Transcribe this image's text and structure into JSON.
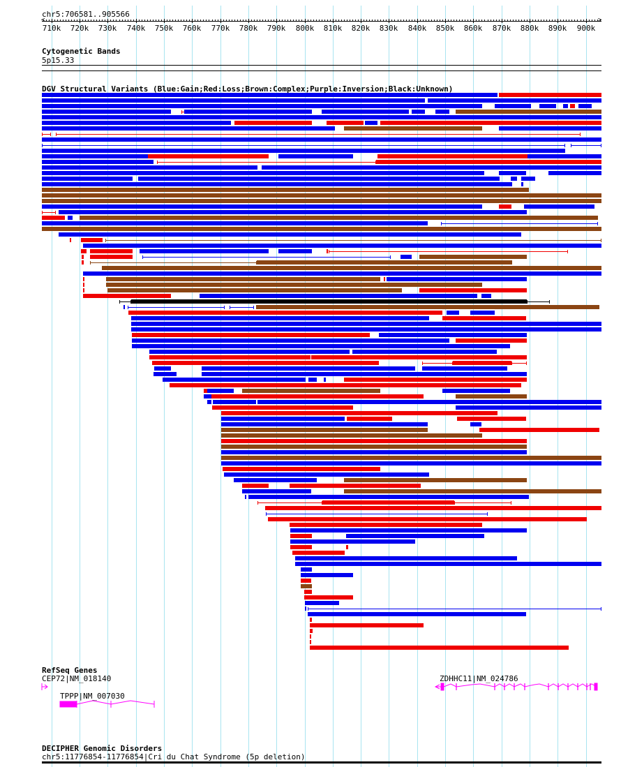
{
  "header": {
    "region": "chr5:706581..905566"
  },
  "ruler": {
    "start_kb": 706.581,
    "end_kb": 905.566,
    "labels": [
      "710k",
      "720k",
      "730k",
      "740k",
      "750k",
      "760k",
      "770k",
      "780k",
      "790k",
      "800k",
      "810k",
      "820k",
      "830k",
      "840k",
      "850k",
      "860k",
      "870k",
      "880k",
      "890k",
      "900k"
    ]
  },
  "cyto": {
    "title": "Cytogenetic Bands",
    "band": "5p15.33"
  },
  "dgv": {
    "title": "DGV Structural Variants (Blue:Gain;Red:Loss;Brown:Complex;Purple:Inversion;Black:Unknown)",
    "colors": {
      "b": "#0000f0",
      "r": "#f00000",
      "n": "#8b4513",
      "k": "#000000"
    },
    "rows": [
      [
        [
          706.6,
          868.5,
          "b"
        ],
        [
          869,
          906.1,
          "r"
        ]
      ],
      [
        [
          706.6,
          842.7,
          "b"
        ],
        [
          843.7,
          906.1,
          "b"
        ]
      ],
      [
        [
          706.6,
          863.1,
          "b"
        ],
        [
          867.5,
          880.5,
          "b"
        ],
        [
          883.5,
          889.4,
          "b"
        ],
        [
          891.9,
          893.7,
          "b"
        ],
        [
          894.4,
          896.2,
          "r"
        ],
        [
          897.4,
          902.1,
          "b"
        ]
      ],
      [
        [
          706.6,
          752.4,
          "b"
        ],
        [
          756.1,
          762.8,
          "r",
          1
        ],
        [
          757.1,
          802.6,
          "b"
        ],
        [
          806.1,
          837,
          "b"
        ],
        [
          838.2,
          842.9,
          "b"
        ],
        [
          846.4,
          851.4,
          "b"
        ],
        [
          853.6,
          906.1,
          "n"
        ]
      ],
      [
        [
          706.6,
          906.1,
          "b"
        ]
      ],
      [
        [
          706.6,
          773.8,
          "b"
        ],
        [
          775,
          802.6,
          "r"
        ],
        [
          807.9,
          821,
          "r"
        ],
        [
          821.5,
          826,
          "b"
        ],
        [
          826.8,
          906.1,
          "r"
        ]
      ],
      [
        [
          706.6,
          810.8,
          "b"
        ],
        [
          814.1,
          863.1,
          "n"
        ],
        [
          869,
          906.1,
          "b"
        ]
      ],
      [
        [
          706.6,
          709.8,
          "r",
          1
        ],
        [
          711.6,
          898.2,
          "r",
          1
        ]
      ],
      [
        [
          706.6,
          906.1,
          "b"
        ]
      ],
      [
        [
          706.6,
          892.7,
          "b",
          1
        ],
        [
          894.7,
          906.1,
          "b",
          1
        ]
      ],
      [
        [
          706.6,
          892.7,
          "b"
        ]
      ],
      [
        [
          706.6,
          744.4,
          "b"
        ],
        [
          744.4,
          787.2,
          "r"
        ],
        [
          790.7,
          817.3,
          "b"
        ],
        [
          826,
          879.2,
          "r"
        ],
        [
          879.2,
          906.1,
          "b"
        ]
      ],
      [
        [
          706.6,
          746.4,
          "b"
        ],
        [
          747.4,
          825.5,
          "r",
          1
        ],
        [
          825.5,
          906.1,
          "r"
        ]
      ],
      [
        [
          706.6,
          783.2,
          "b"
        ],
        [
          784.7,
          906.1,
          "b"
        ]
      ],
      [
        [
          706.6,
          863.8,
          "b"
        ],
        [
          869,
          878.7,
          "b"
        ],
        [
          886.7,
          906.1,
          "b"
        ]
      ],
      [
        [
          706.6,
          738.9,
          "b"
        ],
        [
          740.9,
          869.3,
          "b"
        ],
        [
          873.2,
          875.5,
          "b"
        ],
        [
          877,
          882,
          "b"
        ]
      ],
      [
        [
          706.6,
          873.8,
          "b"
        ],
        [
          877,
          877.7,
          "b"
        ]
      ],
      [
        [
          706.6,
          879.7,
          "n"
        ]
      ],
      [
        [
          706.6,
          906.1,
          "n"
        ]
      ],
      [
        [
          706.6,
          906.1,
          "n"
        ]
      ],
      [
        [
          706.6,
          863.1,
          "b"
        ],
        [
          869,
          873.5,
          "r"
        ],
        [
          878,
          903.1,
          "b"
        ]
      ],
      [
        [
          706.6,
          711.6,
          "r",
          1
        ],
        [
          712.6,
          879,
          "b"
        ]
      ],
      [
        [
          706.6,
          714.8,
          "r"
        ],
        [
          715.8,
          717.5,
          "b"
        ],
        [
          720,
          904.4,
          "n"
        ]
      ],
      [
        [
          706.6,
          843.9,
          "b"
        ],
        [
          848.6,
          904.4,
          "b",
          1
        ]
      ],
      [
        [
          706.6,
          906.1,
          "n"
        ]
      ],
      [
        [
          712.6,
          877,
          "b"
        ]
      ],
      [
        [
          716.6,
          717.1,
          "r"
        ],
        [
          720.5,
          728.2,
          "r"
        ],
        [
          729.2,
          906.1,
          "n",
          1
        ]
      ],
      [
        [
          721.3,
          906.1,
          "b"
        ]
      ],
      [
        [
          720.5,
          722.5,
          "r"
        ],
        [
          723.8,
          738.9,
          "r"
        ],
        [
          741.4,
          787.2,
          "b"
        ],
        [
          790.7,
          802.6,
          "b"
        ],
        [
          807.9,
          808.3,
          "r"
        ],
        [
          808.6,
          893.7,
          "r",
          1
        ]
      ],
      [
        [
          720.8,
          721.5,
          "r"
        ],
        [
          723.8,
          738.9,
          "r"
        ],
        [
          742.2,
          830.7,
          "b",
          1
        ],
        [
          834.2,
          838,
          "b"
        ],
        [
          840.9,
          879,
          "n"
        ]
      ],
      [
        [
          720.8,
          721.5,
          "r"
        ],
        [
          723.8,
          783,
          "n",
          1
        ],
        [
          783,
          873.8,
          "n"
        ]
      ],
      [
        [
          728,
          906.1,
          "n"
        ]
      ],
      [
        [
          721.3,
          906.1,
          "b"
        ]
      ],
      [
        [
          721.3,
          721.6,
          "r"
        ],
        [
          729.5,
          826.8,
          "n"
        ],
        [
          828.2,
          828.5,
          "r"
        ],
        [
          829.2,
          879,
          "b"
        ]
      ],
      [
        [
          721.3,
          721.6,
          "r"
        ],
        [
          729.5,
          863.1,
          "n"
        ]
      ],
      [
        [
          721.3,
          721.6,
          "r"
        ],
        [
          730,
          834.7,
          "n"
        ],
        [
          840.9,
          879,
          "r"
        ]
      ],
      [
        [
          721.3,
          752.4,
          "r"
        ],
        [
          762.6,
          861.3,
          "b"
        ],
        [
          862.8,
          866.3,
          "b"
        ]
      ],
      [
        [
          734.2,
          738.4,
          "k",
          1
        ],
        [
          738.4,
          879,
          "k"
        ],
        [
          879,
          887.2,
          "k",
          1
        ]
      ],
      [
        [
          735.5,
          736,
          "b"
        ],
        [
          737.2,
          771.5,
          "b",
          1
        ],
        [
          773.3,
          782,
          "b",
          1
        ],
        [
          782.7,
          904.9,
          "n"
        ]
      ],
      [
        [
          737.4,
          849.1,
          "r"
        ],
        [
          850.6,
          854.9,
          "b"
        ],
        [
          858.8,
          867.5,
          "b"
        ]
      ],
      [
        [
          738.4,
          844.2,
          "b"
        ],
        [
          848.9,
          878.7,
          "r"
        ]
      ],
      [
        [
          738.4,
          906.1,
          "b"
        ]
      ],
      [
        [
          738.4,
          906.1,
          "b"
        ]
      ],
      [
        [
          738.7,
          823.3,
          "r"
        ],
        [
          826.5,
          879,
          "b"
        ]
      ],
      [
        [
          738.7,
          851.4,
          "b"
        ],
        [
          853.6,
          879,
          "r"
        ]
      ],
      [
        [
          738.7,
          873,
          "b"
        ]
      ],
      [
        [
          744.7,
          816.1,
          "b"
        ],
        [
          817.1,
          868.3,
          "b"
        ]
      ],
      [
        [
          744.7,
          802.1,
          "r"
        ],
        [
          802.4,
          879,
          "r"
        ]
      ],
      [
        [
          745.9,
          826.5,
          "r"
        ],
        [
          841.7,
          852.6,
          "r",
          1
        ],
        [
          852.6,
          873.5,
          "r"
        ],
        [
          873.5,
          879,
          "r",
          1
        ]
      ],
      [
        [
          746.6,
          752.4,
          "b"
        ],
        [
          763.3,
          839.2,
          "b"
        ],
        [
          841.7,
          872,
          "b"
        ]
      ],
      [
        [
          746.4,
          754.4,
          "b"
        ],
        [
          763.3,
          879,
          "b"
        ]
      ],
      [
        [
          749.4,
          800.4,
          "b"
        ],
        [
          801.3,
          804.4,
          "b"
        ],
        [
          806.9,
          807.6,
          "b"
        ],
        [
          814.1,
          879,
          "r"
        ]
      ],
      [
        [
          752.1,
          877,
          "r"
        ]
      ],
      [
        [
          764.1,
          765.5,
          "r"
        ],
        [
          765.5,
          774.8,
          "b"
        ],
        [
          777.7,
          826.8,
          "n"
        ],
        [
          848.9,
          873,
          "b"
        ]
      ],
      [
        [
          764.1,
          766.8,
          "b"
        ],
        [
          766.8,
          842.4,
          "r"
        ],
        [
          853.6,
          879,
          "n"
        ]
      ],
      [
        [
          765.3,
          766.8,
          "b"
        ],
        [
          767.3,
          782.7,
          "b"
        ],
        [
          783.2,
          906.1,
          "b"
        ]
      ],
      [
        [
          767,
          817.3,
          "r"
        ],
        [
          853.6,
          906.1,
          "b"
        ]
      ],
      [
        [
          770.3,
          868.5,
          "r"
        ]
      ],
      [
        [
          770.3,
          814.3,
          "b"
        ],
        [
          815.1,
          831.2,
          "r"
        ],
        [
          854.1,
          878.7,
          "r"
        ]
      ],
      [
        [
          770.3,
          843.9,
          "b"
        ],
        [
          858.8,
          862.8,
          "b"
        ]
      ],
      [
        [
          770.3,
          843.9,
          "n"
        ],
        [
          862.1,
          904.9,
          "r"
        ]
      ],
      [
        [
          770.3,
          863.1,
          "n"
        ]
      ],
      [
        [
          770.3,
          879,
          "r"
        ]
      ],
      [
        [
          770.3,
          879,
          "n"
        ]
      ],
      [
        [
          770.3,
          879,
          "b"
        ]
      ],
      [
        [
          770.3,
          906.1,
          "n"
        ]
      ],
      [
        [
          770.3,
          906.1,
          "b"
        ]
      ],
      [
        [
          770.8,
          826.8,
          "r"
        ]
      ],
      [
        [
          771.3,
          844.2,
          "b"
        ]
      ],
      [
        [
          774.8,
          804.4,
          "b"
        ],
        [
          814.1,
          879,
          "n"
        ]
      ],
      [
        [
          777.7,
          787.2,
          "r"
        ],
        [
          794.7,
          841.4,
          "r"
        ]
      ],
      [
        [
          777.7,
          802.4,
          "b"
        ],
        [
          814.1,
          906.1,
          "n"
        ]
      ],
      [
        [
          778.7,
          779.2,
          "b"
        ],
        [
          779.9,
          879.7,
          "b"
        ]
      ],
      [
        [
          783.2,
          806.4,
          "r",
          1
        ],
        [
          806.4,
          853.1,
          "r"
        ],
        [
          853.1,
          873.5,
          "r",
          1
        ]
      ],
      [
        [
          786,
          906.1,
          "r"
        ]
      ],
      [
        [
          786.2,
          865.1,
          "b",
          1
        ]
      ],
      [
        [
          787,
          900.4,
          "r"
        ]
      ],
      [
        [
          794.7,
          863.1,
          "r"
        ]
      ],
      [
        [
          794.9,
          879,
          "b"
        ]
      ],
      [
        [
          794.9,
          802.6,
          "r"
        ],
        [
          814.8,
          863.8,
          "b"
        ]
      ],
      [
        [
          794.9,
          839.2,
          "b"
        ]
      ],
      [
        [
          794.9,
          802.6,
          "r"
        ],
        [
          814.8,
          815.6,
          "r"
        ]
      ],
      [
        [
          795.7,
          814.3,
          "r"
        ]
      ],
      [
        [
          796.7,
          875.5,
          "b"
        ]
      ],
      [
        [
          796.7,
          906.1,
          "b"
        ]
      ],
      [
        [
          798.6,
          802.6,
          "b"
        ]
      ],
      [
        [
          798.6,
          817.3,
          "b"
        ]
      ],
      [
        [
          798.6,
          802.4,
          "r"
        ]
      ],
      [
        [
          798.6,
          802.6,
          "n"
        ]
      ],
      [
        [
          799.9,
          802.6,
          "r"
        ]
      ],
      [
        [
          799.9,
          817.3,
          "r"
        ]
      ],
      [
        [
          800.1,
          812.3,
          "b"
        ]
      ],
      [
        [
          800.1,
          800.6,
          "b"
        ],
        [
          801.1,
          906.1,
          "b",
          1
        ]
      ],
      [
        [
          801.1,
          878.7,
          "b"
        ]
      ],
      [
        [
          801.9,
          802.6,
          "r"
        ]
      ],
      [
        [
          801.9,
          842.4,
          "r"
        ]
      ],
      [
        [
          801.9,
          802.8,
          "r"
        ]
      ],
      [
        [
          801.9,
          802.4,
          "r"
        ]
      ],
      [
        [
          801.9,
          802.4,
          "r"
        ]
      ],
      [
        [
          801.9,
          893.9,
          "r"
        ]
      ]
    ]
  },
  "genes": {
    "title": "RefSeq Genes",
    "items": [
      {
        "label": "CEP72|NM_018140"
      },
      {
        "label": "TPPP|NM_007030"
      },
      {
        "label": "ZDHHC11|NM_024786"
      }
    ],
    "color": "#ff00ff"
  },
  "decipher": {
    "title": "DECIPHER Genomic Disorders",
    "item": "chr5:11776854-11776854|Cri du Chat Syndrome (5p deletion)"
  }
}
